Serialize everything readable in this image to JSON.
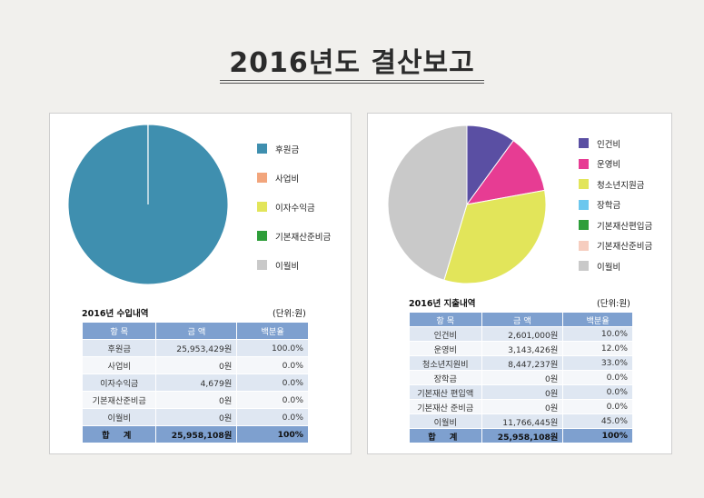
{
  "title": "2016년도 결산보고",
  "income": {
    "table_title": "2016년 수입내역",
    "unit": "(단위:원)",
    "headers": [
      "항 목",
      "금 액",
      "백분율"
    ],
    "rows": [
      [
        "후원금",
        "25,953,429원",
        "100.0%"
      ],
      [
        "사업비",
        "0원",
        "0.0%"
      ],
      [
        "이자수익금",
        "4,679원",
        "0.0%"
      ],
      [
        "기본재산준비금",
        "0원",
        "0.0%"
      ],
      [
        "이월비",
        "0원",
        "0.0%"
      ]
    ],
    "total": [
      "합 계",
      "25,958,108원",
      "100%"
    ]
  },
  "expense": {
    "table_title": "2016년 지출내역",
    "unit": "(단위:원)",
    "headers": [
      "항 목",
      "금 액",
      "백분율"
    ],
    "rows": [
      [
        "인건비",
        "2,601,000원",
        "10.0%"
      ],
      [
        "운영비",
        "3,143,426원",
        "12.0%"
      ],
      [
        "청소년지원비",
        "8,447,237원",
        "33.0%"
      ],
      [
        "장학금",
        "0원",
        "0.0%"
      ],
      [
        "기본재산 편입액",
        "0원",
        "0.0%"
      ],
      [
        "기본재산 준비금",
        "0원",
        "0.0%"
      ],
      [
        "이월비",
        "11,766,445원",
        "45.0%"
      ]
    ],
    "total": [
      "합 계",
      "25,958,108원",
      "100%"
    ]
  },
  "chart_data": [
    {
      "type": "pie",
      "title": "",
      "categories": [
        "후원금",
        "사업비",
        "이자수익금",
        "기본재산준비금",
        "이월비"
      ],
      "values": [
        25953429,
        0,
        4679,
        0,
        0
      ],
      "colors": [
        "#3f8faf",
        "#f2a57c",
        "#e2e55a",
        "#2e9e3a",
        "#c9c9c9"
      ],
      "legend_position": "right"
    },
    {
      "type": "pie",
      "title": "",
      "categories": [
        "인건비",
        "운영비",
        "청소년지원금",
        "장학금",
        "기본재산편입금",
        "기본재산준비금",
        "이월비"
      ],
      "values": [
        2601000,
        3143426,
        8447237,
        0,
        0,
        0,
        11766445
      ],
      "colors": [
        "#5a4fa3",
        "#e73c93",
        "#e2e55a",
        "#6cc7ee",
        "#2e9e3a",
        "#f6cdbf",
        "#c9c9c9"
      ],
      "legend_position": "right"
    }
  ]
}
